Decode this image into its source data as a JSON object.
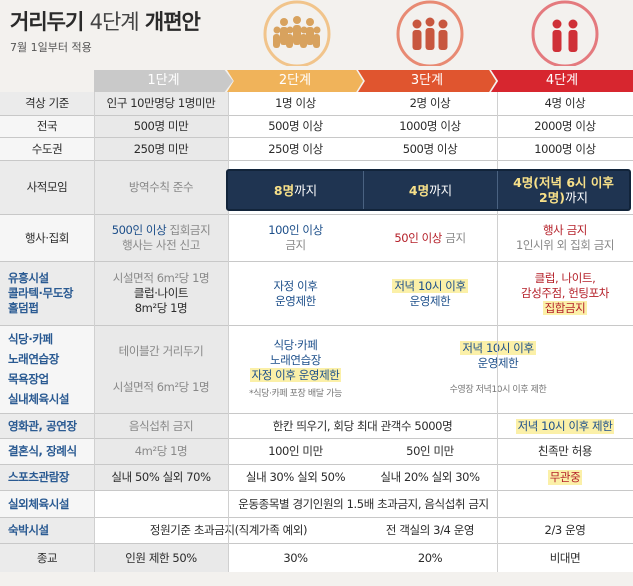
{
  "header": {
    "title_main": "거리두기",
    "title_light": "4단계",
    "title_end": "개편안",
    "subtitle": "7월 1일부터 적용"
  },
  "icons": {
    "level2": "people-group-icon",
    "level3": "people-group-icon",
    "level4": "people-group-icon"
  },
  "levels": [
    "1단계",
    "2단계",
    "3단계",
    "4단계"
  ],
  "colors": {
    "level1": "#c9c9c9",
    "level2": "#f0b35a",
    "level3": "#e0552f",
    "level4": "#d7262f",
    "highlight_box": "#1f3451",
    "highlight_text": "#f7e089"
  },
  "rows": {
    "criteria": {
      "label": "격상 기준",
      "c1": "인구 10만명당 1명미만",
      "c2": "1명 이상",
      "c3": "2명 이상",
      "c4": "4명 이상"
    },
    "nation": {
      "label": "전국",
      "c1": "500명 미만",
      "c2": "500명 이상",
      "c3": "1000명 이상",
      "c4": "2000명 이상"
    },
    "capital": {
      "label": "수도권",
      "c1": "250명 미만",
      "c2": "250명 이상",
      "c3": "500명 이상",
      "c4": "1000명 이상"
    },
    "private": {
      "label": "사적모임",
      "c1": "방역수칙 준수",
      "c2_bold": "8명",
      "c2_rest": "까지",
      "c3_bold": "4명",
      "c3_rest": "까지",
      "c4_line1": "4명(저녁 6시 이후",
      "c4_line2": "2명)",
      "c4_rest": "까지"
    },
    "events": {
      "label": "행사·집회",
      "c1_line1_a": "500인 이상",
      "c1_line1_b": "집회금지",
      "c1_line2": "행사는 사전 신고",
      "c2_line1": "100인 이상",
      "c2_line2": "금지",
      "c3_a": "50인 이상",
      "c3_b": "금지",
      "c4_line1": "행사 금지",
      "c4_line2": "1인시위 외 집회 금지"
    },
    "nightlife": {
      "label_1": "유흥시설",
      "label_2": "콜라텍·무도장",
      "label_3": "홀덤펍",
      "c1_line1": "시설면적 6m²당 1명",
      "c1_line2": "클럽·나이트",
      "c1_line3": "8m²당 1명",
      "c2_line1": "자정 이후",
      "c2_line2": "운영제한",
      "c3_line1": "저녁 10시 이후",
      "c3_line2": "운영제한",
      "c4_line1": "클럽, 나이트,",
      "c4_line2": "감성주점, 헌팅포차",
      "c4_line3": "집합금지"
    },
    "cafe_group": {
      "label_1": "식당·카페",
      "label_2": "노래연습장",
      "label_3": "목욕장업",
      "label_4": "실내체육시설",
      "c1_line1": "테이블간 거리두기",
      "c1_line2": "시설면적 6m²당 1명",
      "c2_line1": "식당·카페",
      "c2_line2": "노래연습장",
      "c2_line3": "자정 이후 운영제한",
      "c2_note": "*식당·카페 포장 배달 가능",
      "c34_line1": "저녁 10시 이후",
      "c34_line2": "운영제한",
      "c34_note": "수영장 저녁10시 이후 제한"
    },
    "cinema": {
      "label": "영화관, 공연장",
      "c1": "음식섭취 금지",
      "c23": "한칸 띄우기, 회당 최대 관객수 5000명",
      "c4": "저녁 10시 이후 제한"
    },
    "wedding": {
      "label": "결혼식, 장례식",
      "c1": "4m²당 1명",
      "c2": "100인 미만",
      "c3": "50인 미만",
      "c4": "친족만 허용"
    },
    "sports_venue": {
      "label": "스포츠관람장",
      "c1": "실내 50% 실외 70%",
      "c2": "실내 30% 실외 50%",
      "c3": "실내 20% 실외 30%",
      "c4": "무관중"
    },
    "outdoor_sports": {
      "label": "실외체육시설",
      "c1234": "운동종목별 경기인원의 1.5배 초과금지, 음식섭취 금지"
    },
    "lodging": {
      "label": "숙박시설",
      "c12": "정원기준 초과금지(직계가족 예외)",
      "c3": "전 객실의 3/4 운영",
      "c4": "2/3 운영"
    },
    "religion": {
      "label": "종교",
      "c1": "인원 제한 50%",
      "c2": "30%",
      "c3": "20%",
      "c4": "비대면"
    }
  }
}
